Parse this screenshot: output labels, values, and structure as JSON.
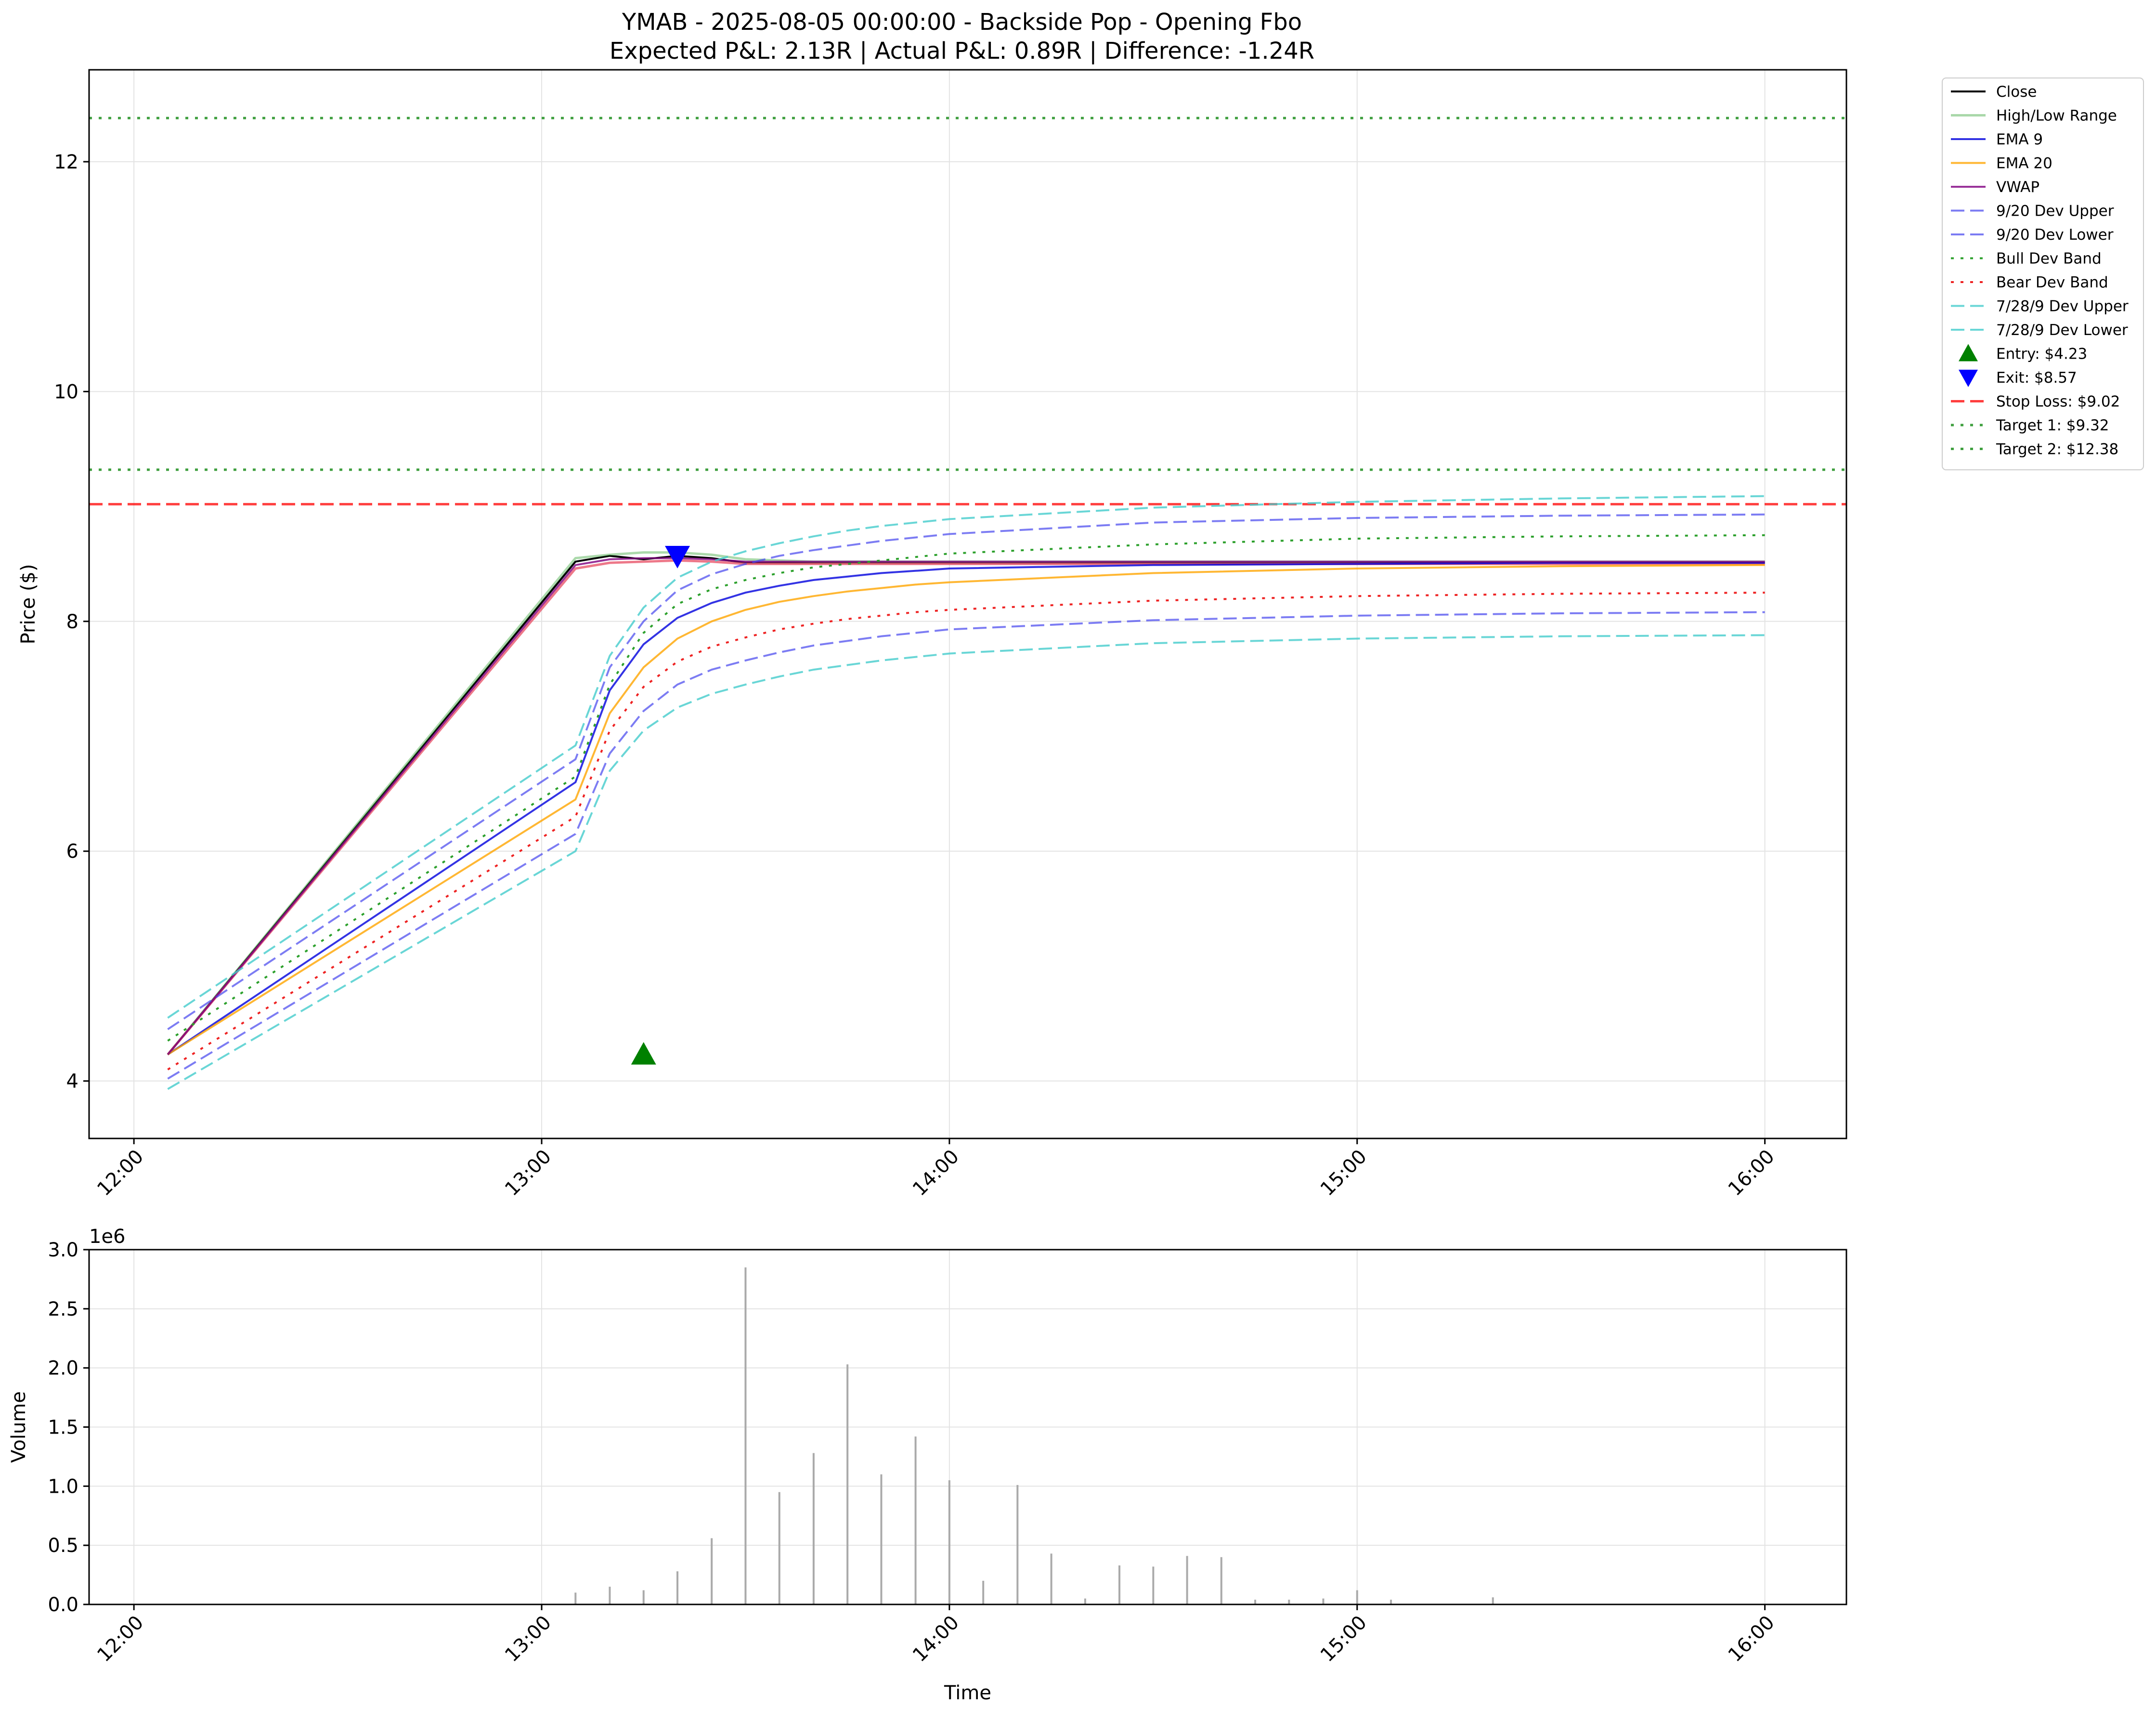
{
  "title_line1": "YMAB - 2025-08-05 00:00:00 - Backside Pop - Opening Fbo",
  "title_line2": "Expected P&L: 2.13R | Actual P&L: 0.89R | Difference: -1.24R",
  "chart_data": [
    {
      "type": "line",
      "ylabel": "Price ($)",
      "xlabel": "",
      "x_ticks": [
        "12:00",
        "13:00",
        "14:00",
        "15:00",
        "16:00"
      ],
      "x_tick_hours": [
        12,
        13,
        14,
        15,
        16
      ],
      "xlim_hours": [
        11.89,
        16.2
      ],
      "y_ticks": [
        4,
        6,
        8,
        10,
        12
      ],
      "ylim": [
        3.5,
        12.8
      ],
      "grid": true,
      "legend_position": "outside-right",
      "x_hours": [
        12.083,
        13.083,
        13.167,
        13.25,
        13.333,
        13.417,
        13.5,
        13.583,
        13.667,
        13.75,
        13.833,
        13.917,
        14.0,
        14.5,
        15.0,
        15.5,
        16.0
      ],
      "series": [
        {
          "name": "Close",
          "color": "#000000",
          "style": "solid",
          "width": 4,
          "values": [
            4.23,
            8.52,
            8.57,
            8.54,
            8.57,
            8.55,
            8.51,
            8.51,
            8.51,
            8.51,
            8.51,
            8.51,
            8.51,
            8.51,
            8.51,
            8.51,
            8.51
          ]
        },
        {
          "name": "High/Low Range",
          "color": "#2ca02c",
          "style": "solid",
          "width": 5,
          "opacity": 0.4,
          "values": [
            4.23,
            8.55,
            8.58,
            8.6,
            8.6,
            8.58,
            8.54,
            8.53,
            8.52,
            8.52,
            8.52,
            8.52,
            8.52,
            8.52,
            8.52,
            8.52,
            8.52
          ]
        },
        {
          "name": "High/Low Range (low)",
          "legend": false,
          "color": "#e8566c",
          "style": "solid",
          "width": 5,
          "opacity": 0.8,
          "values": [
            4.23,
            8.46,
            8.51,
            8.52,
            8.53,
            8.52,
            8.5,
            8.5,
            8.5,
            8.5,
            8.5,
            8.5,
            8.5,
            8.5,
            8.5,
            8.5,
            8.5
          ]
        },
        {
          "name": "EMA 9",
          "color": "#0000dd",
          "style": "solid",
          "width": 4,
          "opacity": 0.8,
          "values": [
            4.23,
            6.6,
            7.4,
            7.8,
            8.03,
            8.16,
            8.25,
            8.31,
            8.36,
            8.39,
            8.42,
            8.44,
            8.46,
            8.49,
            8.5,
            8.51,
            8.51
          ]
        },
        {
          "name": "EMA 20",
          "color": "#ffa500",
          "style": "solid",
          "width": 4,
          "opacity": 0.8,
          "values": [
            4.23,
            6.45,
            7.2,
            7.6,
            7.85,
            8.0,
            8.1,
            8.17,
            8.22,
            8.26,
            8.29,
            8.32,
            8.34,
            8.42,
            8.46,
            8.48,
            8.49
          ]
        },
        {
          "name": "VWAP",
          "color": "#800080",
          "style": "solid",
          "width": 4,
          "opacity": 0.8,
          "values": [
            4.23,
            8.49,
            8.54,
            8.55,
            8.55,
            8.54,
            8.52,
            8.52,
            8.52,
            8.52,
            8.52,
            8.52,
            8.52,
            8.52,
            8.52,
            8.52,
            8.52
          ]
        },
        {
          "name": "9/20 Dev Upper",
          "color": "#4444ee",
          "style": "dashed",
          "width": 4,
          "opacity": 0.7,
          "values": [
            4.45,
            6.8,
            7.6,
            8.0,
            8.27,
            8.41,
            8.5,
            8.57,
            8.62,
            8.66,
            8.7,
            8.73,
            8.76,
            8.86,
            8.9,
            8.92,
            8.93
          ]
        },
        {
          "name": "9/20 Dev Lower",
          "color": "#4444ee",
          "style": "dashed",
          "width": 4,
          "opacity": 0.7,
          "values": [
            4.02,
            6.15,
            6.85,
            7.22,
            7.45,
            7.58,
            7.66,
            7.73,
            7.79,
            7.83,
            7.87,
            7.9,
            7.93,
            8.01,
            8.05,
            8.07,
            8.08
          ]
        },
        {
          "name": "Bull Dev Band",
          "color": "#2ca02c",
          "style": "dotted",
          "width": 4,
          "opacity": 1,
          "values": [
            4.35,
            6.65,
            7.45,
            7.9,
            8.15,
            8.28,
            8.36,
            8.42,
            8.47,
            8.5,
            8.53,
            8.56,
            8.59,
            8.67,
            8.72,
            8.74,
            8.75
          ]
        },
        {
          "name": "Bear Dev Band",
          "color": "#ee2222",
          "style": "dotted",
          "width": 4,
          "opacity": 1,
          "values": [
            4.1,
            6.3,
            7.05,
            7.43,
            7.65,
            7.78,
            7.86,
            7.93,
            7.98,
            8.02,
            8.05,
            8.08,
            8.1,
            8.18,
            8.22,
            8.24,
            8.25
          ]
        },
        {
          "name": "7/28/9 Dev Upper",
          "color": "#44cccc",
          "style": "dashed",
          "width": 4,
          "opacity": 0.8,
          "values": [
            4.55,
            6.92,
            7.7,
            8.12,
            8.38,
            8.52,
            8.61,
            8.68,
            8.74,
            8.79,
            8.83,
            8.86,
            8.89,
            8.99,
            9.04,
            9.07,
            9.09
          ]
        },
        {
          "name": "7/28/9 Dev Lower",
          "color": "#44cccc",
          "style": "dashed",
          "width": 4,
          "opacity": 0.8,
          "values": [
            3.93,
            6.0,
            6.7,
            7.05,
            7.25,
            7.37,
            7.45,
            7.52,
            7.58,
            7.62,
            7.66,
            7.69,
            7.72,
            7.81,
            7.85,
            7.87,
            7.88
          ]
        }
      ],
      "markers": [
        {
          "name": "Entry: $4.23",
          "shape": "triangle-up",
          "color": "#008000",
          "x_hour": 13.25,
          "y": 4.23
        },
        {
          "name": "Exit: $8.57",
          "shape": "triangle-down",
          "color": "#0000ff",
          "x_hour": 13.333,
          "y": 8.57
        }
      ],
      "hlines": [
        {
          "name": "Stop Loss: $9.02",
          "value": 9.02,
          "color": "#ff0000",
          "style": "dashed",
          "opacity": 0.75
        },
        {
          "name": "Target 1: $9.32",
          "value": 9.32,
          "color": "#008000",
          "style": "dotted",
          "opacity": 0.75
        },
        {
          "name": "Target 2: $12.38",
          "value": 12.38,
          "color": "#008000",
          "style": "dotted",
          "opacity": 0.75
        }
      ],
      "legend_order": [
        "Close",
        "High/Low Range",
        "EMA 9",
        "EMA 20",
        "VWAP",
        "9/20 Dev Upper",
        "9/20 Dev Lower",
        "Bull Dev Band",
        "Bear Dev Band",
        "7/28/9 Dev Upper",
        "7/28/9 Dev Lower",
        "Entry: $4.23",
        "Exit: $8.57",
        "Stop Loss: $9.02",
        "Target 1: $9.32",
        "Target 2: $12.38"
      ]
    },
    {
      "type": "bar",
      "ylabel": "Volume",
      "xlabel": "Time",
      "y_offset_label": "1e6",
      "x_ticks": [
        "12:00",
        "13:00",
        "14:00",
        "15:00",
        "16:00"
      ],
      "y_ticks": [
        "0.0",
        "0.5",
        "1.0",
        "1.5",
        "2.0",
        "2.5",
        "3.0"
      ],
      "y_tick_values": [
        0,
        0.5,
        1.0,
        1.5,
        2.0,
        2.5,
        3.0
      ],
      "ylim": [
        0,
        3.0
      ],
      "grid": true,
      "bar_color": "#aaaaaa",
      "x_hours": [
        13.083,
        13.167,
        13.25,
        13.333,
        13.417,
        13.5,
        13.583,
        13.667,
        13.75,
        13.833,
        13.917,
        14.0,
        14.083,
        14.167,
        14.25,
        14.333,
        14.417,
        14.5,
        14.583,
        14.667,
        14.75,
        14.833,
        14.917,
        15.0,
        15.083,
        15.333
      ],
      "values": [
        0.1,
        0.15,
        0.12,
        0.28,
        0.56,
        2.85,
        0.95,
        1.28,
        2.03,
        1.1,
        1.42,
        1.05,
        0.2,
        1.01,
        0.43,
        0.05,
        0.33,
        0.32,
        0.41,
        0.4,
        0.04,
        0.04,
        0.05,
        0.12,
        0.04,
        0.06
      ]
    }
  ]
}
